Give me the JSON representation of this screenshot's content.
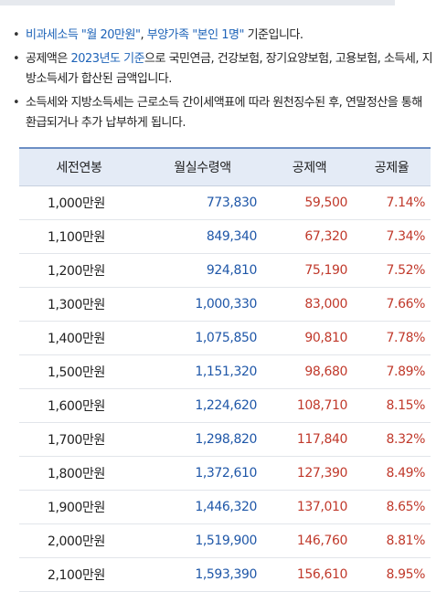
{
  "notes": [
    {
      "parts": [
        {
          "text": "비과세소득 \"월 20만원\"",
          "style": "blue"
        },
        {
          "text": ", ",
          "style": "plain"
        },
        {
          "text": "부양가족 \"본인 1명\"",
          "style": "blue"
        },
        {
          "text": " 기준입니다.",
          "style": "plain"
        }
      ]
    },
    {
      "parts": [
        {
          "text": "공제액은 ",
          "style": "plain"
        },
        {
          "text": "2023년도 기준",
          "style": "blue"
        },
        {
          "text": "으로 국민연금, 건강보험, 장기요양보험, 고용보험, 소득세, 지방소득세가 합산된 금액입니다.",
          "style": "plain"
        }
      ]
    },
    {
      "parts": [
        {
          "text": "소득세와 지방소득세는 근로소득 간이세액표에 따라 원천징수된 후, 연말정산을 통해 환급되거나 추가 납부하게 됩니다.",
          "style": "plain"
        }
      ]
    }
  ],
  "table": {
    "headers": [
      "세전연봉",
      "월실수령액",
      "공제액",
      "공제율"
    ],
    "rows": [
      [
        "1,000만원",
        "773,830",
        "59,500",
        "7.14%"
      ],
      [
        "1,100만원",
        "849,340",
        "67,320",
        "7.34%"
      ],
      [
        "1,200만원",
        "924,810",
        "75,190",
        "7.52%"
      ],
      [
        "1,300만원",
        "1,000,330",
        "83,000",
        "7.66%"
      ],
      [
        "1,400만원",
        "1,075,850",
        "90,810",
        "7.78%"
      ],
      [
        "1,500만원",
        "1,151,320",
        "98,680",
        "7.89%"
      ],
      [
        "1,600만원",
        "1,224,620",
        "108,710",
        "8.15%"
      ],
      [
        "1,700만원",
        "1,298,820",
        "117,840",
        "8.32%"
      ],
      [
        "1,800만원",
        "1,372,610",
        "127,390",
        "8.49%"
      ],
      [
        "1,900만원",
        "1,446,320",
        "137,010",
        "8.65%"
      ],
      [
        "2,000만원",
        "1,519,900",
        "146,760",
        "8.81%"
      ],
      [
        "2,100만원",
        "1,593,390",
        "156,610",
        "8.95%"
      ]
    ]
  },
  "colors": {
    "header_bg": "#e4ebf6",
    "header_border": "#6b8ec4",
    "monthly_text": "#1f57a8",
    "deduction_text": "#c0392b",
    "highlight_text": "#1e63b8"
  }
}
